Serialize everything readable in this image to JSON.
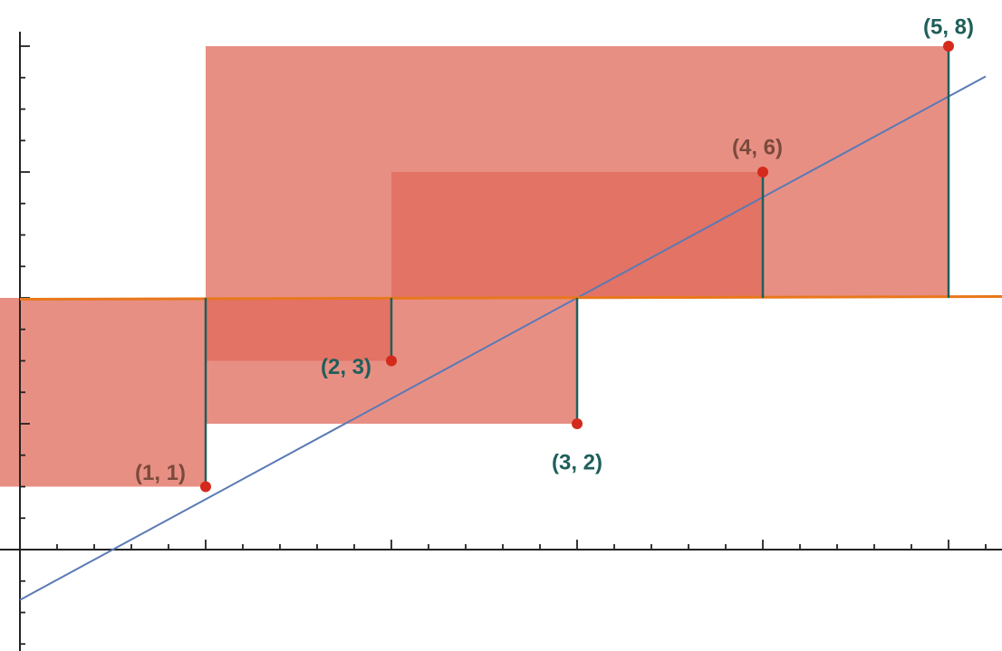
{
  "chart_data": {
    "type": "scatter",
    "points": [
      {
        "label": "(1, 1)",
        "x": 1,
        "y": 1,
        "label_color": "#7a4a3c"
      },
      {
        "label": "(2, 3)",
        "x": 2,
        "y": 3,
        "label_color": "#1f5f5a"
      },
      {
        "label": "(3, 2)",
        "x": 3,
        "y": 2,
        "label_color": "#1f5f5a"
      },
      {
        "label": "(4, 6)",
        "x": 4,
        "y": 6,
        "label_color": "#7a4a3c"
      },
      {
        "label": "(5, 8)",
        "x": 5,
        "y": 8,
        "label_color": "#1f5f5a"
      }
    ],
    "mean_line": {
      "y": 4,
      "color": "#e8781c"
    },
    "fit_line": {
      "slope": 1.6,
      "intercept": -0.8,
      "color": "#5a7ab5"
    },
    "squares": {
      "color": "#e06a5b",
      "opacity": 0.75
    },
    "residual_color": "#1f5f5a",
    "point_color": "#d42a1c",
    "xlim": [
      -0.1,
      5.2
    ],
    "ylim": [
      -1.6,
      8.3
    ],
    "x_tick_step": 0.2,
    "y_tick_step": 0.5,
    "tick_labels_shown": false,
    "grid": false,
    "legend": "none"
  }
}
